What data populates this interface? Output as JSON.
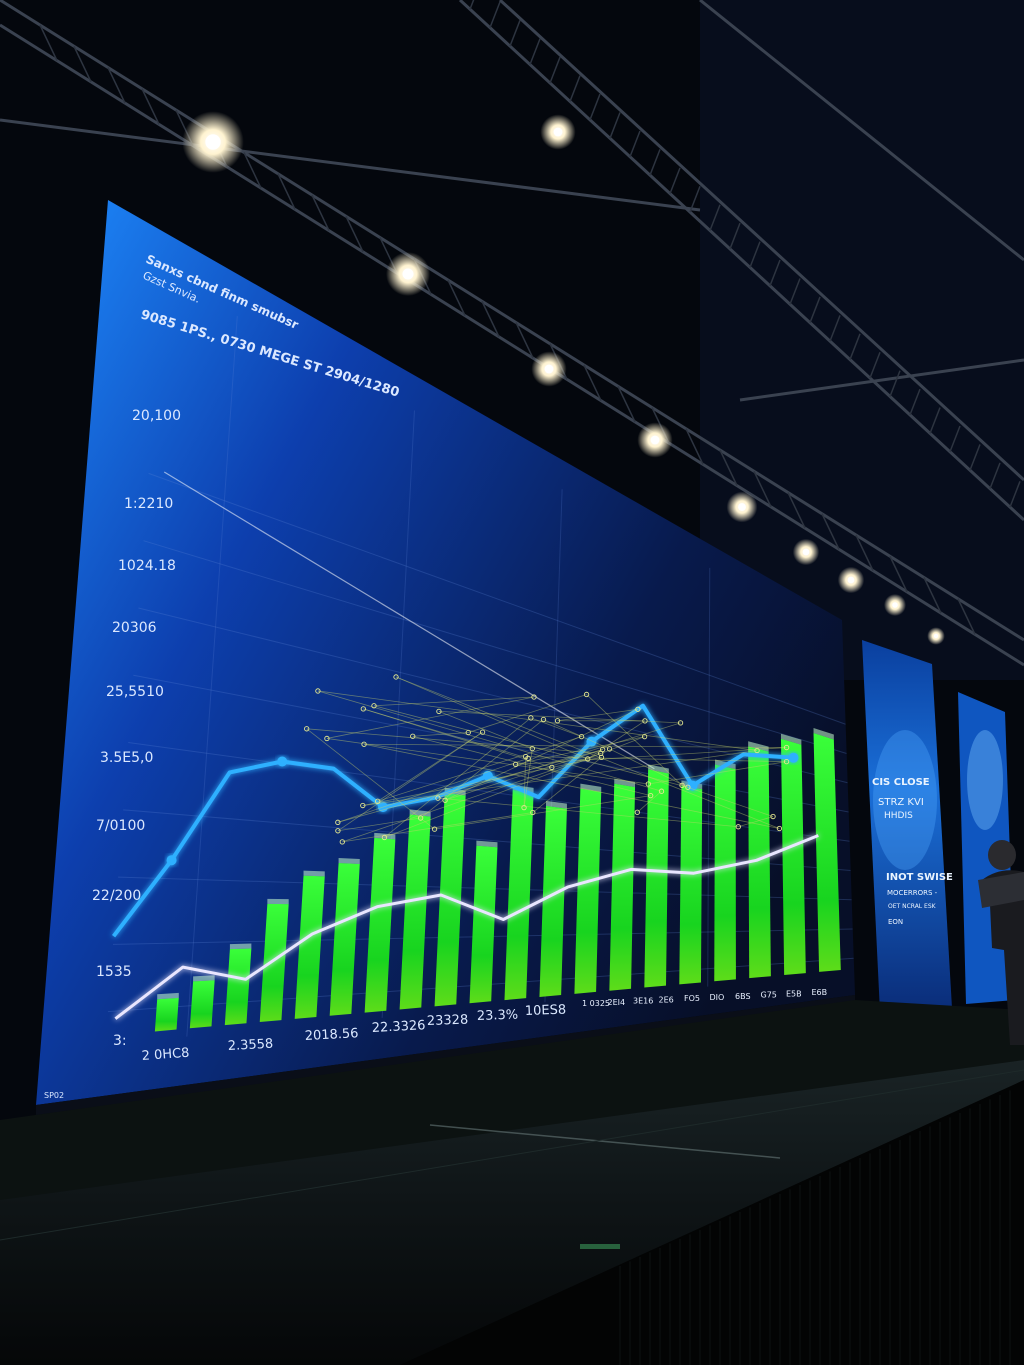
{
  "screen": {
    "title_line1": "Sanxs cbnd finm smubsr",
    "title_line2": "Gzst Snvia.",
    "headline": "9085 1PS., 0730 MEGE ST 2904/1280",
    "corner_mark": "SP02"
  },
  "chart_data": {
    "type": "bar",
    "y_tick_labels": [
      "20,100",
      "1:2210",
      "1024.18",
      "20306",
      "25,5510",
      "3.5E5,0",
      "7/0100",
      "22/200",
      "1535",
      "3:"
    ],
    "x_tick_labels": [
      "2 0HC8",
      "2.3558",
      "2018.56",
      "22.3326",
      "23328",
      "23.3%",
      "10ES8"
    ],
    "x_tick_labels_right": [
      "1 0325",
      "2EI4",
      "3E16",
      "2E6",
      "FO5",
      "DIO",
      "6BS",
      "G75",
      "E5B",
      "E6B"
    ],
    "bar_values": [
      2,
      3,
      5,
      8,
      10,
      11,
      13,
      15,
      17,
      13,
      18,
      17,
      19,
      20,
      22,
      21,
      24,
      27,
      29,
      31
    ],
    "bar_color": "#22ee2a",
    "series": [
      {
        "values": [
          2,
          6,
          11,
          12,
          12,
          10,
          11,
          13,
          12,
          17,
          21,
          15,
          19,
          20
        ]
      },
      {
        "values": [
          1,
          4,
          3,
          6,
          8,
          9,
          7,
          10,
          12,
          12,
          14,
          18
        ]
      }
    ],
    "series_colors": [
      "#2fb0ff",
      "#e9e6ff"
    ]
  },
  "side_panel": {
    "line1": "CIS CLOSE",
    "line2": "STRZ KVI",
    "line3": "HHDIS",
    "line4": "INOT SWISE",
    "line5": "MOCERRORS -",
    "line6": "OET NCRAL ESK",
    "line7": "EON"
  },
  "colors": {
    "screen_blue": "#1b7ff0",
    "screen_navy": "#071433",
    "accent_green": "#22ee2a",
    "line_cyan": "#2fb0ff"
  }
}
